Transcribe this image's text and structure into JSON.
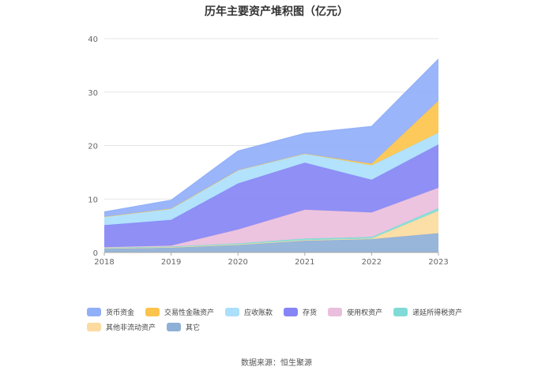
{
  "chart_data": {
    "type": "area",
    "stacked": true,
    "title": "历年主要资产堆积图（亿元）",
    "x": [
      "2018",
      "2019",
      "2020",
      "2021",
      "2022",
      "2023"
    ],
    "ylim": [
      0,
      40
    ],
    "yticks": [
      0,
      10,
      20,
      30,
      40
    ],
    "grid": true,
    "legend_position": "bottom",
    "series": [
      {
        "name": "其它",
        "color": "#8eb0d6",
        "values": [
          0.7,
          0.9,
          1.4,
          2.2,
          2.5,
          3.6
        ]
      },
      {
        "name": "其他非流动资产",
        "color": "#fcdba0",
        "values": [
          0.1,
          0.1,
          0.1,
          0.1,
          0.1,
          4.2
        ]
      },
      {
        "name": "递延所得税资产",
        "color": "#80dbd6",
        "values": [
          0.1,
          0.1,
          0.2,
          0.3,
          0.3,
          0.5
        ]
      },
      {
        "name": "使用权资产",
        "color": "#eabfdc",
        "values": [
          0.1,
          0.2,
          2.6,
          5.4,
          4.6,
          3.8
        ]
      },
      {
        "name": "存货",
        "color": "#8685f5",
        "values": [
          4.1,
          4.8,
          8.6,
          8.8,
          6.1,
          8.1
        ]
      },
      {
        "name": "应收账款",
        "color": "#abdffc",
        "values": [
          1.6,
          2.1,
          2.5,
          1.7,
          2.7,
          2.2
        ]
      },
      {
        "name": "交易性金融资产",
        "color": "#fcc44c",
        "values": [
          0,
          0,
          0,
          0,
          0.3,
          6.0
        ]
      },
      {
        "name": "货币资金",
        "color": "#91aff8",
        "values": [
          0.9,
          1.6,
          3.6,
          3.8,
          7.0,
          7.8
        ]
      }
    ],
    "legend_order": [
      "货币资金",
      "交易性金融资产",
      "应收账款",
      "存货",
      "使用权资产",
      "递延所得税资产",
      "其他非流动资产",
      "其它"
    ]
  },
  "source": "数据来源：恒生聚源"
}
